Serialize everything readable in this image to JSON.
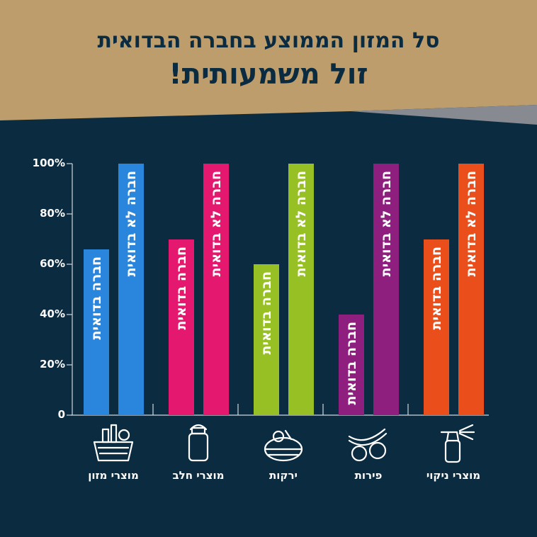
{
  "header": {
    "line1": "סל המזון הממוצע בחברה הבדואית",
    "line2": "זול משמעותית!"
  },
  "colors": {
    "background": "#0a2b40",
    "header": "#bd9d6c",
    "wedge": "#878a90"
  },
  "chart_data": {
    "type": "bar",
    "ylim": [
      0,
      100
    ],
    "yticks": [
      "0",
      "20%",
      "40%",
      "60%",
      "80%",
      "100%"
    ],
    "categories": [
      "מוצרי מזון",
      "מוצרי חלב",
      "ירקות",
      "פירות",
      "מוצרי ניקוי"
    ],
    "category_icons": [
      "shopping-basket-icon",
      "milk-can-icon",
      "vegetable-basket-icon",
      "fruits-icon",
      "spray-bottle-icon"
    ],
    "category_colors": [
      "#2a86dc",
      "#e5186f",
      "#97c024",
      "#8e1f7f",
      "#e94e1b"
    ],
    "series": [
      {
        "name": "חברה בדואית",
        "values": [
          66,
          70,
          60,
          40,
          70
        ]
      },
      {
        "name": "חברה לא בדואית",
        "values": [
          100,
          100,
          100,
          100,
          100
        ]
      }
    ]
  }
}
